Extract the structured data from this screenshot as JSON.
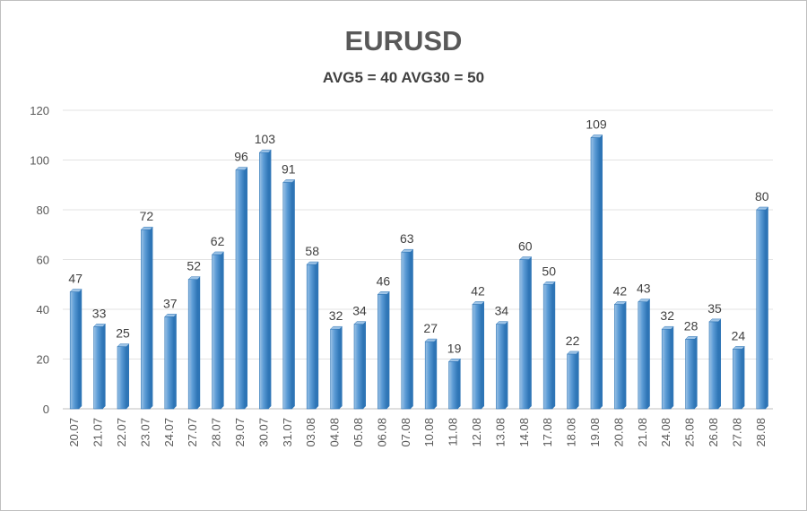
{
  "chart_data": {
    "type": "bar",
    "title": "EURUSD",
    "subtitle": "AVG5 = 40 AVG30 = 50",
    "xlabel": "",
    "ylabel": "",
    "ylim": [
      0,
      120
    ],
    "yticks": [
      0,
      20,
      40,
      60,
      80,
      100,
      120
    ],
    "grid": true,
    "categories": [
      "20.07",
      "21.07",
      "22.07",
      "23.07",
      "24.07",
      "27.07",
      "28.07",
      "29.07",
      "30.07",
      "31.07",
      "03.08",
      "04.08",
      "05.08",
      "06.08",
      "07.08",
      "10.08",
      "11.08",
      "12.08",
      "13.08",
      "14.08",
      "17.08",
      "18.08",
      "19.08",
      "20.08",
      "21.08",
      "24.08",
      "25.08",
      "26.08",
      "27.08",
      "28.08"
    ],
    "values": [
      47,
      33,
      25,
      72,
      37,
      52,
      62,
      96,
      103,
      91,
      58,
      32,
      34,
      46,
      63,
      27,
      19,
      42,
      34,
      60,
      50,
      22,
      109,
      42,
      43,
      32,
      28,
      35,
      24,
      80
    ],
    "colors": {
      "bar": "#5b9bd5",
      "bar_light": "#9dc3e6",
      "bar_dark": "#2e75b6",
      "grid": "#e3e3e3"
    }
  }
}
